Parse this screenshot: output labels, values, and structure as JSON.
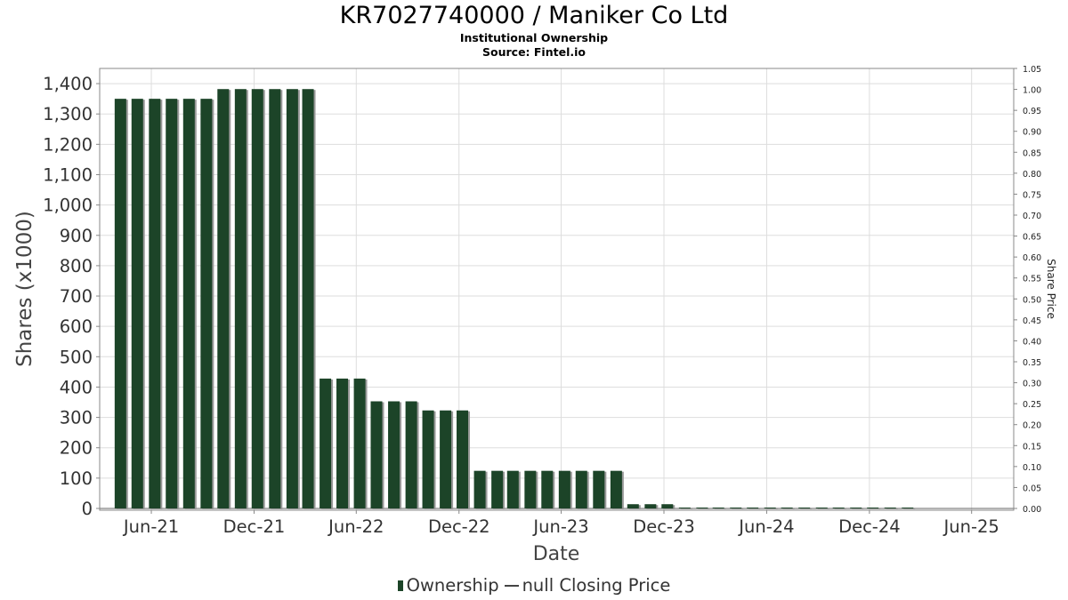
{
  "header": {
    "title": "KR7027740000 / Maniker Co Ltd",
    "subtitle1": "Institutional Ownership",
    "subtitle2": "Source: Fintel.io"
  },
  "legend": {
    "ownership": "Ownership",
    "price": "null Closing Price"
  },
  "colors": {
    "bar": "#1c4428",
    "bar_shadow": "#9a9a9a",
    "grid": "#dddddd",
    "axis": "#888888"
  },
  "chart_data": {
    "type": "bar",
    "xlabel": "Date",
    "ylabel": "Shares (x1000)",
    "y2label": "Share Price",
    "ylim": [
      0,
      1450
    ],
    "y2lim": [
      0,
      1.05
    ],
    "xlim": [
      "2021-03-01",
      "2025-08-15"
    ],
    "yticks": [
      0,
      100,
      200,
      300,
      400,
      500,
      600,
      700,
      800,
      900,
      1000,
      1100,
      1200,
      1300,
      1400
    ],
    "yticklabels": [
      "0",
      "100",
      "200",
      "300",
      "400",
      "500",
      "600",
      "700",
      "800",
      "900",
      "1,000",
      "1,100",
      "1,200",
      "1,300",
      "1,400"
    ],
    "y2ticklabels": [
      "0.00",
      "0.05",
      "0.10",
      "0.15",
      "0.20",
      "0.25",
      "0.30",
      "0.35",
      "0.40",
      "0.45",
      "0.50",
      "0.55",
      "0.60",
      "0.65",
      "0.70",
      "0.75",
      "0.80",
      "0.85",
      "0.90",
      "0.95",
      "1.00",
      "1.05"
    ],
    "xticks": [
      "2021-06-01",
      "2021-12-01",
      "2022-06-01",
      "2022-12-01",
      "2023-06-01",
      "2023-12-01",
      "2024-06-01",
      "2024-12-01",
      "2025-06-01"
    ],
    "xticklabels": [
      "Jun-21",
      "Dec-21",
      "Jun-22",
      "Dec-22",
      "Jun-23",
      "Dec-23",
      "Jun-24",
      "Dec-24",
      "Jun-25"
    ],
    "grid": true,
    "dates": [
      "2021-04-07",
      "2021-05-07",
      "2021-06-07",
      "2021-07-07",
      "2021-08-07",
      "2021-09-07",
      "2021-10-07",
      "2021-11-07",
      "2021-12-07",
      "2022-01-07",
      "2022-02-07",
      "2022-03-07",
      "2022-04-07",
      "2022-05-07",
      "2022-06-07",
      "2022-07-07",
      "2022-08-07",
      "2022-09-07",
      "2022-10-07",
      "2022-11-07",
      "2022-12-07",
      "2023-01-07",
      "2023-02-07",
      "2023-03-07",
      "2023-04-07",
      "2023-05-07",
      "2023-06-07",
      "2023-07-07",
      "2023-08-07",
      "2023-09-07",
      "2023-10-07",
      "2023-11-07",
      "2023-12-07",
      "2024-01-07",
      "2024-02-07",
      "2024-03-07",
      "2024-04-07",
      "2024-05-07",
      "2024-06-07",
      "2024-07-07",
      "2024-08-07",
      "2024-09-07",
      "2024-10-07",
      "2024-11-07",
      "2024-12-07",
      "2025-01-07",
      "2025-02-07"
    ],
    "series": [
      {
        "name": "Ownership",
        "values": [
          1350,
          1350,
          1350,
          1350,
          1350,
          1350,
          1382,
          1382,
          1382,
          1382,
          1382,
          1382,
          428,
          428,
          428,
          353,
          353,
          353,
          323,
          323,
          323,
          124,
          124,
          124,
          124,
          124,
          124,
          124,
          124,
          124,
          14,
          14,
          14,
          3,
          3,
          3,
          3,
          3,
          3,
          3,
          3,
          3,
          3,
          3,
          3,
          3,
          3
        ]
      }
    ]
  }
}
